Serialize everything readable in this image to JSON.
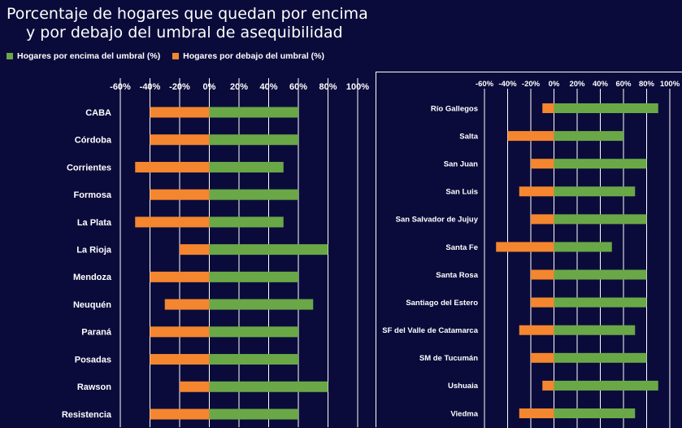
{
  "title_line1": "Porcentaje de hogares que quedan por encima",
  "title_line2": "y por debajo del umbral de asequibilidad",
  "legend": {
    "above_label": "Hogares por encima del umbral (%)",
    "below_label": "Hogares por debajo del umbral (%)"
  },
  "colors": {
    "above": "#6aa847",
    "below": "#f4862f",
    "background": "#0b0b3b",
    "grid": "#ffffff"
  },
  "chart_data": [
    {
      "type": "bar",
      "orientation": "horizontal",
      "stacked": "diverging",
      "categories": [
        "CABA",
        "Córdoba",
        "Corrientes",
        "Formosa",
        "La Plata",
        "La Rioja",
        "Mendoza",
        "Neuquén",
        "Paraná",
        "Posadas",
        "Rawson",
        "Resistencia"
      ],
      "series": [
        {
          "name": "Hogares por encima del umbral (%)",
          "values": [
            60,
            60,
            50,
            60,
            50,
            80,
            60,
            70,
            60,
            60,
            80,
            60
          ]
        },
        {
          "name": "Hogares por debajo del umbral (%)",
          "values": [
            -40,
            -40,
            -50,
            -40,
            -50,
            -20,
            -40,
            -30,
            -40,
            -40,
            -20,
            -40
          ]
        }
      ],
      "xlim": [
        -60,
        100
      ],
      "xticks": [
        "-60%",
        "-40%",
        "-20%",
        "0%",
        "20%",
        "40%",
        "60%",
        "80%",
        "100%"
      ],
      "tick_values": [
        -60,
        -40,
        -20,
        0,
        20,
        40,
        60,
        80,
        100
      ],
      "grid": true
    },
    {
      "type": "bar",
      "orientation": "horizontal",
      "stacked": "diverging",
      "categories": [
        "Río Gallegos",
        "Salta",
        "San Juan",
        "San Luis",
        "San Salvador de Jujuy",
        "Santa Fe",
        "Santa Rosa",
        "Santiago del Estero",
        "SF del Valle de Catamarca",
        "SM de Tucumán",
        "Ushuaia",
        "Viedma"
      ],
      "series": [
        {
          "name": "Hogares por encima del umbral (%)",
          "values": [
            90,
            60,
            80,
            70,
            80,
            50,
            80,
            80,
            70,
            80,
            90,
            70
          ]
        },
        {
          "name": "Hogares por debajo del umbral (%)",
          "values": [
            -10,
            -40,
            -20,
            -30,
            -20,
            -50,
            -20,
            -20,
            -30,
            -20,
            -10,
            -30
          ]
        }
      ],
      "xlim": [
        -60,
        100
      ],
      "xticks": [
        "-60%",
        "-40%",
        "-20%",
        "0%",
        "20%",
        "40%",
        "60%",
        "80%",
        "100%"
      ],
      "tick_values": [
        -60,
        -40,
        -20,
        0,
        20,
        40,
        60,
        80,
        100
      ],
      "grid": true
    }
  ]
}
